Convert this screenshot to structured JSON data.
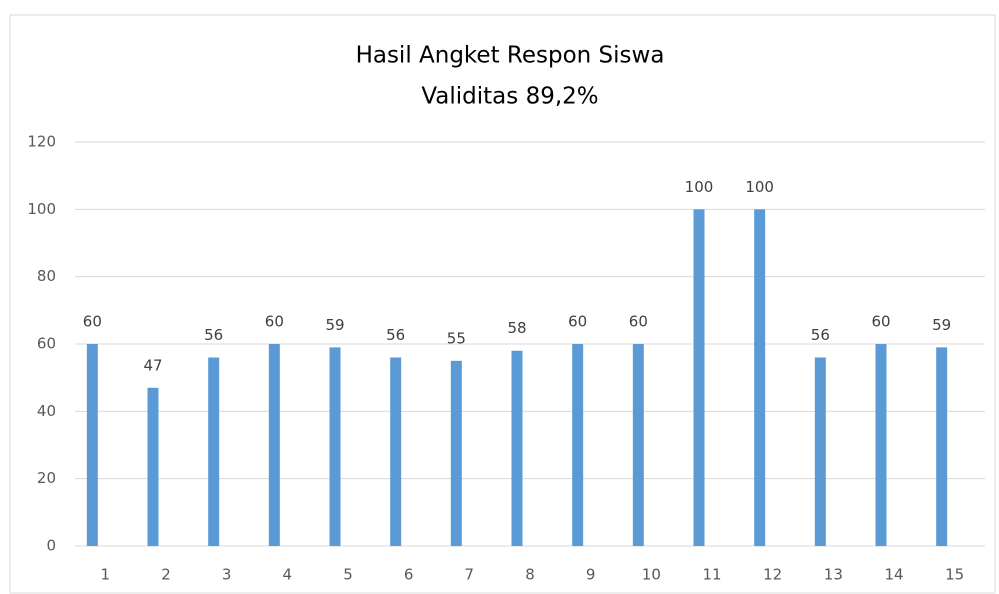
{
  "chart_data": {
    "type": "bar",
    "title": "Hasil Angket Respon Siswa",
    "subtitle": "Validitas 89,2%",
    "categories": [
      "1",
      "2",
      "3",
      "4",
      "5",
      "6",
      "7",
      "8",
      "9",
      "10",
      "11",
      "12",
      "13",
      "14",
      "15"
    ],
    "values": [
      60,
      47,
      56,
      60,
      59,
      56,
      55,
      58,
      60,
      60,
      100,
      100,
      56,
      60,
      59
    ],
    "color": "#5b9bd5",
    "ylim": [
      0,
      120
    ],
    "yticks": [
      0,
      20,
      40,
      60,
      80,
      100,
      120
    ],
    "grid": true
  }
}
